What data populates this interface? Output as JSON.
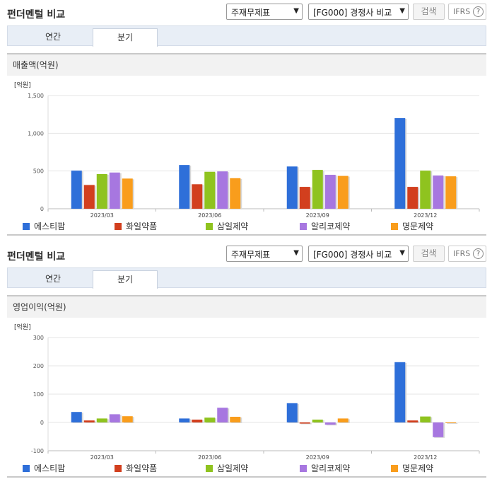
{
  "ui": {
    "title": "펀더멘털 비교",
    "select1": "주재무제표",
    "select2": "[FG000] 경쟁사 비교",
    "search_button": "검색",
    "ifrs_label": "IFRS",
    "ifrs_help": "?",
    "tabs": [
      "연간",
      "분기"
    ],
    "active_tab": 1
  },
  "chart_data": [
    {
      "type": "bar",
      "title": "매출액(억원)",
      "unit_label": "[억원]",
      "categories": [
        "2023/03",
        "2023/06",
        "2023/09",
        "2023/12"
      ],
      "ylim": [
        0,
        1500
      ],
      "yticks": [
        0,
        500,
        1000,
        1500
      ],
      "ytick_labels": [
        "0",
        "500",
        "1,000",
        "1,500"
      ],
      "grid": true,
      "legend": "bottom",
      "series": [
        {
          "name": "에스티팜",
          "color": "#2e6fd9",
          "values": [
            505,
            580,
            560,
            1200
          ]
        },
        {
          "name": "화일약품",
          "color": "#d23f1e",
          "values": [
            315,
            325,
            290,
            290
          ]
        },
        {
          "name": "삼일제약",
          "color": "#8fc31f",
          "values": [
            460,
            490,
            515,
            505
          ]
        },
        {
          "name": "알리코제약",
          "color": "#a777e0",
          "values": [
            480,
            495,
            450,
            440
          ]
        },
        {
          "name": "명문제약",
          "color": "#f99d1c",
          "values": [
            400,
            405,
            435,
            430
          ]
        }
      ]
    },
    {
      "type": "bar",
      "title": "영업이익(억원)",
      "unit_label": "[억원]",
      "categories": [
        "2023/03",
        "2023/06",
        "2023/09",
        "2023/12"
      ],
      "ylim": [
        -100,
        300
      ],
      "yticks": [
        -100,
        0,
        100,
        200,
        300
      ],
      "ytick_labels": [
        "-100",
        "0",
        "100",
        "200",
        "300"
      ],
      "grid": true,
      "legend": "bottom",
      "series": [
        {
          "name": "에스티팜",
          "color": "#2e6fd9",
          "values": [
            37,
            14,
            68,
            213
          ]
        },
        {
          "name": "화일약품",
          "color": "#d23f1e",
          "values": [
            7,
            10,
            -4,
            7
          ]
        },
        {
          "name": "삼일제약",
          "color": "#8fc31f",
          "values": [
            14,
            17,
            10,
            21
          ]
        },
        {
          "name": "알리코제약",
          "color": "#a777e0",
          "values": [
            29,
            52,
            -8,
            -52
          ]
        },
        {
          "name": "명문제약",
          "color": "#f99d1c",
          "values": [
            22,
            20,
            14,
            -2
          ]
        }
      ]
    }
  ]
}
